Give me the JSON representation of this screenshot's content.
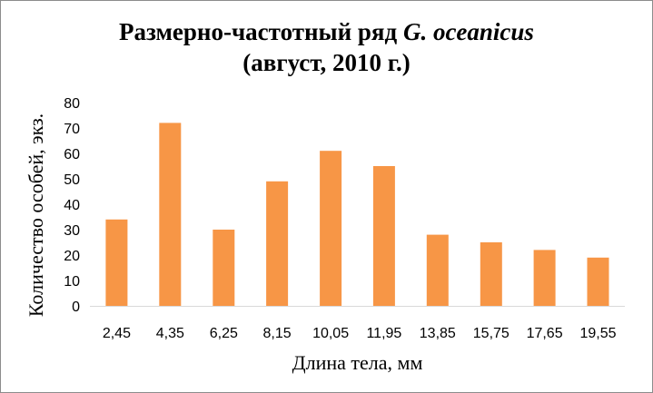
{
  "chart_data": {
    "type": "bar",
    "title": "Размерно-частотный ряд",
    "title_italic": "G. oceanicus",
    "subtitle": "(август, 2010 г.)",
    "xlabel": "Длина тела, мм",
    "ylabel": "Количество особей, экз.",
    "categories": [
      "2,45",
      "4,35",
      "6,25",
      "8,15",
      "10,05",
      "11,95",
      "13,85",
      "15,75",
      "17,65",
      "19,55"
    ],
    "values": [
      34,
      72,
      30,
      49,
      61,
      55,
      28,
      25,
      22,
      19
    ],
    "ylim": [
      0,
      80
    ],
    "yticks": [
      0,
      10,
      20,
      30,
      40,
      50,
      60,
      70,
      80
    ],
    "bar_color": "#F79646",
    "grid": false,
    "legend": "none"
  }
}
